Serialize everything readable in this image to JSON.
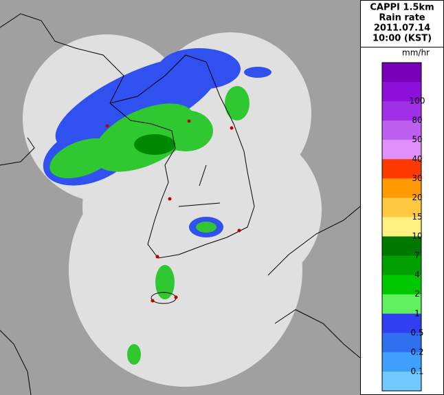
{
  "header": {
    "lines": [
      "CAPPI 1.5km",
      "Rain rate",
      "2011.07.14",
      "10:00 (KST)"
    ]
  },
  "legend": {
    "unit": "mm/hr",
    "labels": [
      "100",
      "80",
      "50",
      "40",
      "30",
      "20",
      "15",
      "10",
      "7",
      "4",
      "2",
      "1",
      "0.5",
      "0.2",
      "0.1"
    ],
    "colors": [
      "#7800b8",
      "#8c10d8",
      "#a030e8",
      "#c060f0",
      "#e090f8",
      "#ff3a00",
      "#ff9a00",
      "#ffc840",
      "#fff080",
      "#007800",
      "#00a000",
      "#00c800",
      "#60f060",
      "#3040f0",
      "#3070f0",
      "#40a0ff",
      "#70c8ff"
    ]
  }
}
